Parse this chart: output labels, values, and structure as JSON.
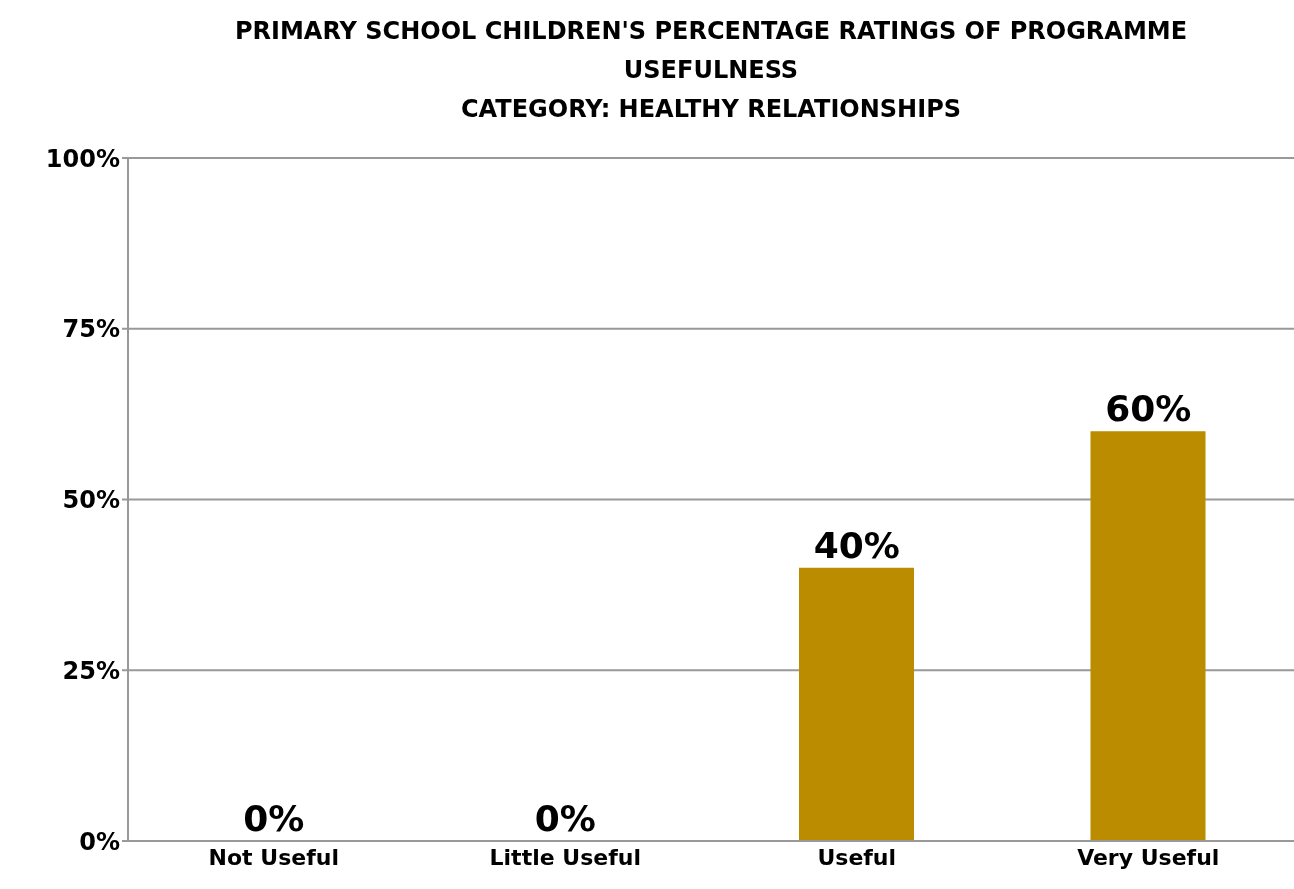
{
  "chart_data": {
    "type": "bar",
    "title": "PRIMARY SCHOOL CHILDREN'S PERCENTAGE RATINGS OF PROGRAMME USEFULNESS",
    "subtitle": "CATEGORY: HEALTHY RELATIONSHIPS",
    "categories": [
      "Not Useful",
      "Little Useful",
      "Useful",
      "Very Useful"
    ],
    "values": [
      0,
      0,
      40,
      60
    ],
    "color": "#bb8c00",
    "value_labels": [
      "0%",
      "0%",
      "40%",
      "60%"
    ],
    "ylim": [
      0,
      100
    ],
    "yticks": [
      {
        "value": 0,
        "label": "0%"
      },
      {
        "value": 25,
        "label": "25%"
      },
      {
        "value": 50,
        "label": "50%"
      },
      {
        "value": 75,
        "label": "75%"
      },
      {
        "value": 100,
        "label": "100%"
      }
    ],
    "grid": "y"
  }
}
